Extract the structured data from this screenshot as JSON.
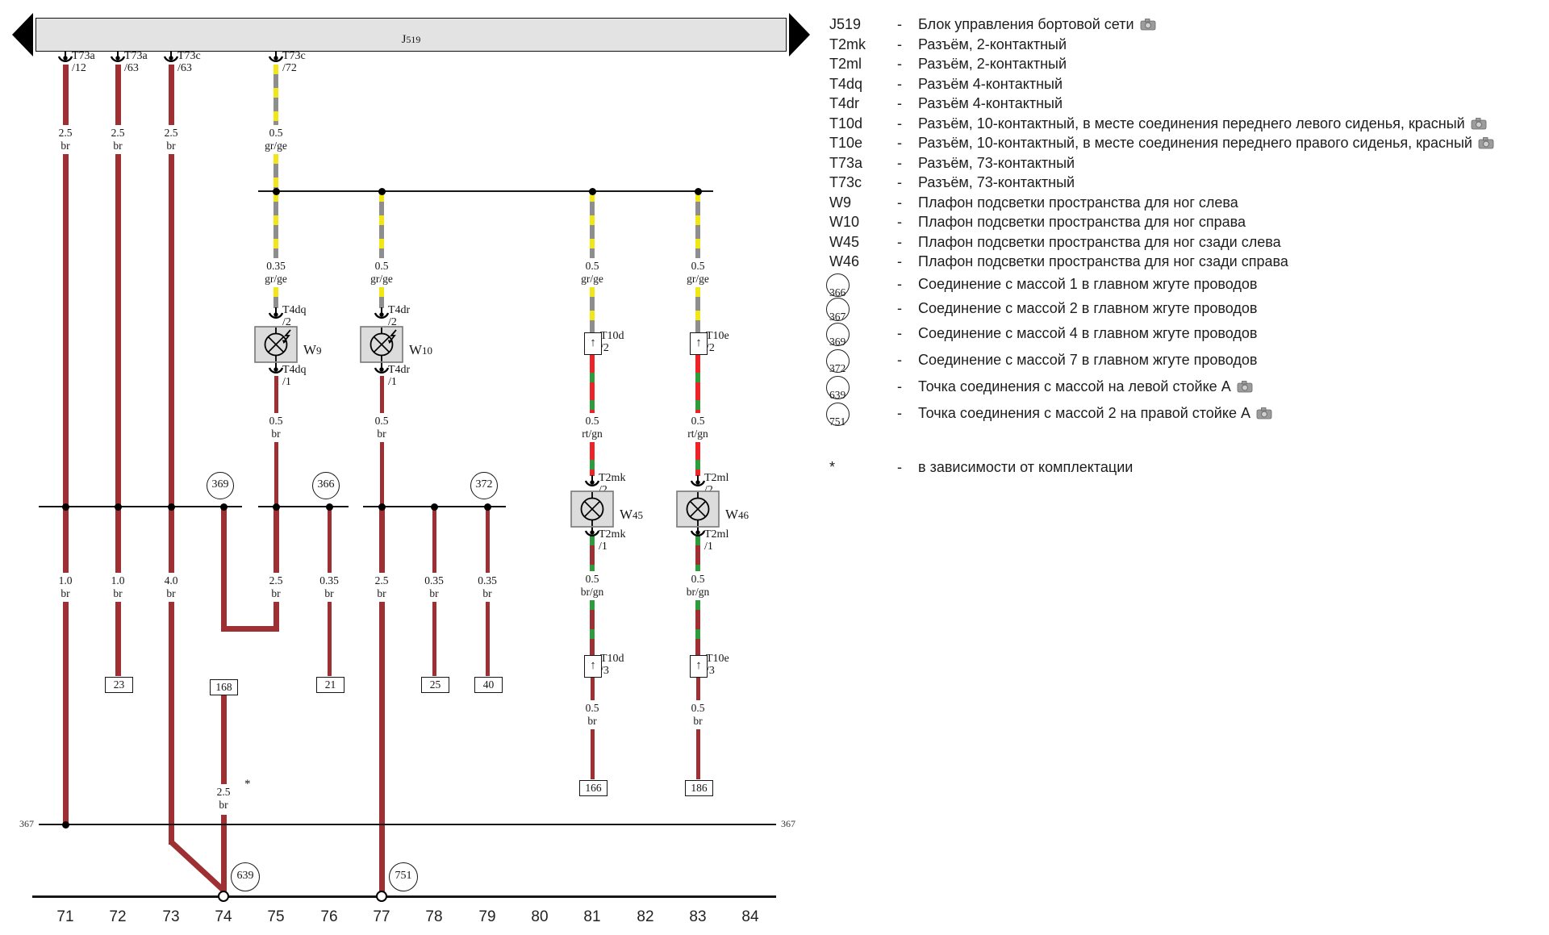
{
  "bar": {
    "code_prefix": "J",
    "code_digits": "519"
  },
  "edge_label": "367",
  "footnote_star": "*",
  "top_connectors": [
    {
      "name": "T73a",
      "pin": "/12"
    },
    {
      "name": "T73a",
      "pin": "/63"
    },
    {
      "name": "T73c",
      "pin": "/63"
    },
    {
      "name": "T73c",
      "pin": "/72"
    }
  ],
  "wire_labels": [
    {
      "size": "2.5",
      "color": "br"
    },
    {
      "size": "2.5",
      "color": "br"
    },
    {
      "size": "2.5",
      "color": "br"
    },
    {
      "size": "0.5",
      "color": "gr/ge"
    },
    {
      "size": "0.35",
      "color": "gr/ge"
    },
    {
      "size": "0.5",
      "color": "gr/ge"
    },
    {
      "size": "0.5",
      "color": "gr/ge"
    },
    {
      "size": "0.5",
      "color": "gr/ge"
    },
    {
      "size": "0.5",
      "color": "br"
    },
    {
      "size": "0.5",
      "color": "br"
    },
    {
      "size": "0.5",
      "color": "rt/gn"
    },
    {
      "size": "0.5",
      "color": "rt/gn"
    },
    {
      "size": "0.5",
      "color": "br/gn"
    },
    {
      "size": "0.5",
      "color": "br/gn"
    },
    {
      "size": "0.5",
      "color": "br"
    },
    {
      "size": "0.5",
      "color": "br"
    },
    {
      "size": "1.0",
      "color": "br"
    },
    {
      "size": "1.0",
      "color": "br"
    },
    {
      "size": "4.0",
      "color": "br"
    },
    {
      "size": "2.5",
      "color": "br"
    },
    {
      "size": "0.35",
      "color": "br"
    },
    {
      "size": "2.5",
      "color": "br"
    },
    {
      "size": "0.35",
      "color": "br"
    },
    {
      "size": "0.35",
      "color": "br"
    },
    {
      "size": "2.5",
      "color": "br"
    }
  ],
  "pin_labels": [
    {
      "name": "T4dq",
      "pin": "/2"
    },
    {
      "name": "T4dr",
      "pin": "/2"
    },
    {
      "name": "T4dq",
      "pin": "/1"
    },
    {
      "name": "T4dr",
      "pin": "/1"
    },
    {
      "name": "T10d",
      "pin": "/2"
    },
    {
      "name": "T10e",
      "pin": "/2"
    },
    {
      "name": "T2mk",
      "pin": "/2"
    },
    {
      "name": "T2ml",
      "pin": "/2"
    },
    {
      "name": "T2mk",
      "pin": "/1"
    },
    {
      "name": "T2ml",
      "pin": "/1"
    },
    {
      "name": "T10d",
      "pin": "/3"
    },
    {
      "name": "T10e",
      "pin": "/3"
    }
  ],
  "lamps": [
    {
      "prefix": "W",
      "digits": "9"
    },
    {
      "prefix": "W",
      "digits": "10"
    },
    {
      "prefix": "W",
      "digits": "45"
    },
    {
      "prefix": "W",
      "digits": "46"
    }
  ],
  "ground_circles": [
    "369",
    "366",
    "372"
  ],
  "ground_points": [
    "639",
    "751"
  ],
  "terminal_boxes": [
    "23",
    "21",
    "25",
    "40",
    "168",
    "166",
    "186"
  ],
  "grid_numbers": [
    "71",
    "72",
    "73",
    "74",
    "75",
    "76",
    "77",
    "78",
    "79",
    "80",
    "81",
    "82",
    "83",
    "84"
  ],
  "colors": {
    "br": "#9E2F33",
    "rt": "#EC2427",
    "gn": "#2E9B3C",
    "ge": "#F2E716",
    "gr": "#8E8E8E"
  },
  "legend": {
    "dash": "-",
    "entries": [
      {
        "code": "J519",
        "text": "Блок управления бортовой сети",
        "camera": true
      },
      {
        "code": "T2mk",
        "text": "Разъём, 2-контактный",
        "camera": false
      },
      {
        "code": "T2ml",
        "text": "Разъём, 2-контактный",
        "camera": false
      },
      {
        "code": "T4dq",
        "text": "Разъём 4-контактный",
        "camera": false
      },
      {
        "code": "T4dr",
        "text": "Разъём 4-контактный",
        "camera": false
      },
      {
        "code": "T10d",
        "text": "Разъём, 10-контактный, в месте соединения переднего левого сиденья, красный",
        "camera": true
      },
      {
        "code": "T10e",
        "text": "Разъём, 10-контактный, в месте соединения переднего правого сиденья, красный",
        "camera": true
      },
      {
        "code": "T73a",
        "text": "Разъём, 73-контактный",
        "camera": false
      },
      {
        "code": "T73c",
        "text": "Разъём, 73-контактный",
        "camera": false
      },
      {
        "code": "W9",
        "text": "Плафон подсветки пространства для ног слева",
        "camera": false
      },
      {
        "code": "W10",
        "text": "Плафон подсветки пространства для ног справа",
        "camera": false
      },
      {
        "code": "W45",
        "text": "Плафон подсветки пространства для ног сзади слева",
        "camera": false
      },
      {
        "code": "W46",
        "text": "Плафон подсветки пространства для ног сзади справа",
        "camera": false
      }
    ],
    "ground_entries": [
      {
        "code": "366",
        "text": "Соединение с массой 1 в главном жгуте проводов",
        "camera": false
      },
      {
        "code": "367",
        "text": "Соединение с массой 2 в главном жгуте проводов",
        "camera": false
      },
      {
        "code": "369",
        "text": "Соединение с массой 4 в главном жгуте проводов",
        "camera": false
      },
      {
        "code": "372",
        "text": "Соединение с массой 7 в главном жгуте проводов",
        "camera": false
      },
      {
        "code": "639",
        "text": "Точка соединения с массой на левой стойке A",
        "camera": true
      },
      {
        "code": "751",
        "text": "Точка соединения с массой 2 на правой стойке A",
        "camera": true
      }
    ],
    "note": {
      "symbol": "*",
      "text": "в зависимости от комплектации"
    }
  }
}
